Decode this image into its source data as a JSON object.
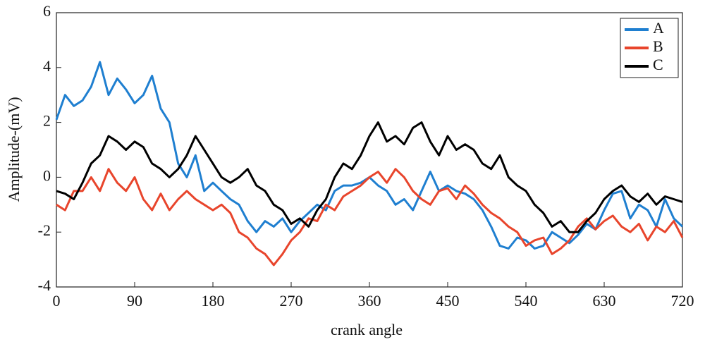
{
  "chart_data": {
    "type": "line",
    "x_label": "crank angle",
    "y_label": "Amplitude-(mV)",
    "x": [
      0,
      10,
      20,
      30,
      40,
      50,
      60,
      70,
      80,
      90,
      100,
      110,
      120,
      130,
      140,
      150,
      160,
      170,
      180,
      190,
      200,
      210,
      220,
      230,
      240,
      250,
      260,
      270,
      280,
      290,
      300,
      310,
      320,
      330,
      340,
      350,
      360,
      370,
      380,
      390,
      400,
      410,
      420,
      430,
      440,
      450,
      460,
      470,
      480,
      490,
      500,
      510,
      520,
      530,
      540,
      550,
      560,
      570,
      580,
      590,
      600,
      610,
      620,
      630,
      640,
      650,
      660,
      670,
      680,
      690,
      700,
      710,
      720
    ],
    "series": [
      {
        "name": "A",
        "color": "#1f7fd0",
        "values": [
          2.1,
          3.0,
          2.6,
          2.8,
          3.3,
          4.2,
          3.0,
          3.6,
          3.2,
          2.7,
          3.0,
          3.7,
          2.5,
          2.0,
          0.5,
          0.0,
          0.8,
          -0.5,
          -0.2,
          -0.5,
          -0.8,
          -1.0,
          -1.6,
          -2.0,
          -1.6,
          -1.8,
          -1.5,
          -2.0,
          -1.6,
          -1.3,
          -1.0,
          -1.2,
          -0.5,
          -0.3,
          -0.3,
          -0.2,
          0.0,
          -0.3,
          -0.5,
          -1.0,
          -0.8,
          -1.2,
          -0.5,
          0.2,
          -0.5,
          -0.3,
          -0.5,
          -0.6,
          -0.8,
          -1.2,
          -1.8,
          -2.5,
          -2.6,
          -2.2,
          -2.3,
          -2.6,
          -2.5,
          -2.0,
          -2.2,
          -2.4,
          -2.1,
          -1.7,
          -1.9,
          -1.2,
          -0.6,
          -0.5,
          -1.5,
          -1.0,
          -1.2,
          -1.8,
          -0.8,
          -1.5,
          -1.8
        ]
      },
      {
        "name": "B",
        "color": "#e8452c",
        "values": [
          -1.0,
          -1.2,
          -0.5,
          -0.5,
          0.0,
          -0.5,
          0.3,
          -0.2,
          -0.5,
          0.0,
          -0.8,
          -1.2,
          -0.6,
          -1.2,
          -0.8,
          -0.5,
          -0.8,
          -1.0,
          -1.2,
          -1.0,
          -1.3,
          -2.0,
          -2.2,
          -2.6,
          -2.8,
          -3.2,
          -2.8,
          -2.3,
          -2.0,
          -1.5,
          -1.6,
          -1.0,
          -1.2,
          -0.7,
          -0.5,
          -0.3,
          0.0,
          0.2,
          -0.2,
          0.3,
          0.0,
          -0.5,
          -0.8,
          -1.0,
          -0.5,
          -0.4,
          -0.8,
          -0.3,
          -0.6,
          -1.0,
          -1.3,
          -1.5,
          -1.8,
          -2.0,
          -2.5,
          -2.3,
          -2.2,
          -2.8,
          -2.6,
          -2.3,
          -1.8,
          -1.5,
          -1.9,
          -1.6,
          -1.4,
          -1.8,
          -2.0,
          -1.7,
          -2.3,
          -1.8,
          -2.0,
          -1.6,
          -2.2
        ]
      },
      {
        "name": "C",
        "color": "#000000",
        "values": [
          -0.5,
          -0.6,
          -0.8,
          -0.2,
          0.5,
          0.8,
          1.5,
          1.3,
          1.0,
          1.3,
          1.1,
          0.5,
          0.3,
          0.0,
          0.3,
          0.8,
          1.5,
          1.0,
          0.5,
          0.0,
          -0.2,
          0.0,
          0.3,
          -0.3,
          -0.5,
          -1.0,
          -1.2,
          -1.7,
          -1.5,
          -1.8,
          -1.2,
          -0.8,
          0.0,
          0.5,
          0.3,
          0.8,
          1.5,
          2.0,
          1.3,
          1.5,
          1.2,
          1.8,
          2.0,
          1.3,
          0.8,
          1.5,
          1.0,
          1.2,
          1.0,
          0.5,
          0.3,
          0.8,
          0.0,
          -0.3,
          -0.5,
          -1.0,
          -1.3,
          -1.8,
          -1.6,
          -2.0,
          -2.0,
          -1.6,
          -1.3,
          -0.8,
          -0.5,
          -0.3,
          -0.7,
          -0.9,
          -0.6,
          -1.0,
          -0.7,
          -0.8,
          -0.9
        ]
      }
    ],
    "xlim": [
      0,
      720
    ],
    "xticks": [
      0,
      90,
      180,
      270,
      360,
      450,
      540,
      630,
      720
    ],
    "ylim": [
      -4,
      6
    ],
    "yticks": [
      -4,
      -2,
      0,
      2,
      4,
      6
    ],
    "legend": "upper right"
  }
}
